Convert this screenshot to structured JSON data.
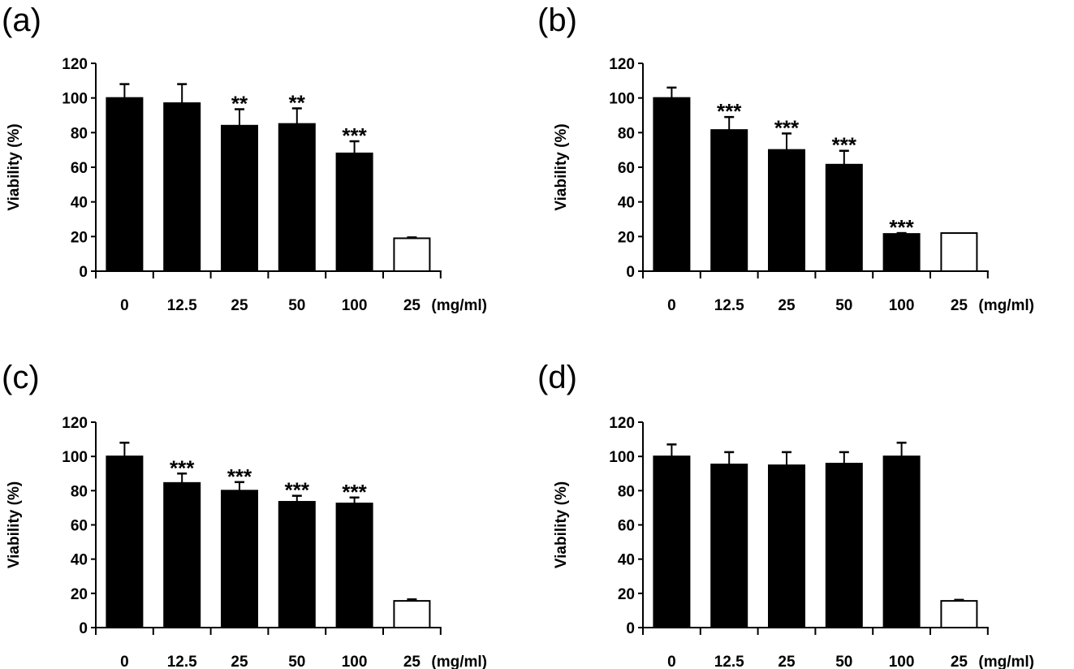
{
  "chart_data": [
    {
      "panel": "(a)",
      "type": "bar",
      "title": "",
      "xlabel": "",
      "ylabel": "Viability (%)",
      "ylim": [
        0,
        120
      ],
      "yticks": [
        0,
        20,
        40,
        60,
        80,
        100,
        120
      ],
      "categories": [
        "0",
        "12.5",
        "25",
        "50",
        "100",
        "25"
      ],
      "x_unit": "(mg/ml)",
      "values": [
        100,
        97,
        84,
        85,
        68,
        19
      ],
      "error_upper": [
        108,
        108,
        93.5,
        94,
        75,
        19.5
      ],
      "fill": [
        "black",
        "black",
        "black",
        "black",
        "black",
        "white"
      ],
      "significance": [
        "",
        "",
        "**",
        "**",
        "***",
        ""
      ],
      "grid": false
    },
    {
      "panel": "(b)",
      "type": "bar",
      "title": "",
      "xlabel": "",
      "ylabel": "Viability (%)",
      "ylim": [
        0,
        120
      ],
      "yticks": [
        0,
        20,
        40,
        60,
        80,
        100,
        120
      ],
      "categories": [
        "0",
        "12.5",
        "25",
        "50",
        "100",
        "25"
      ],
      "x_unit": "(mg/ml)",
      "values": [
        100,
        81.5,
        70,
        61.5,
        21.5,
        22
      ],
      "error_upper": [
        106,
        89,
        79.5,
        69.5,
        22,
        22
      ],
      "fill": [
        "black",
        "black",
        "black",
        "black",
        "black",
        "white"
      ],
      "significance": [
        "",
        "***",
        "***",
        "***",
        "***",
        ""
      ],
      "grid": false
    },
    {
      "panel": "(c)",
      "type": "bar",
      "title": "",
      "xlabel": "",
      "ylabel": "Viability (%)",
      "ylim": [
        0,
        120
      ],
      "yticks": [
        0,
        20,
        40,
        60,
        80,
        100,
        120
      ],
      "categories": [
        "0",
        "12.5",
        "25",
        "50",
        "100",
        "25"
      ],
      "x_unit": "(mg/ml)",
      "values": [
        100,
        84.5,
        80,
        73.5,
        72.5,
        15.6
      ],
      "error_upper": [
        108,
        90,
        85,
        77,
        76,
        16.5
      ],
      "fill": [
        "black",
        "black",
        "black",
        "black",
        "black",
        "white"
      ],
      "significance": [
        "",
        "***",
        "***",
        "***",
        "***",
        ""
      ],
      "grid": false
    },
    {
      "panel": "(d)",
      "type": "bar",
      "title": "",
      "xlabel": "",
      "ylabel": "Viability (%)",
      "ylim": [
        0,
        120
      ],
      "yticks": [
        0,
        20,
        40,
        60,
        80,
        100,
        120
      ],
      "categories": [
        "0",
        "12.5",
        "25",
        "50",
        "100",
        "25"
      ],
      "x_unit": "(mg/ml)",
      "values": [
        100,
        95.3,
        94.8,
        95.8,
        100,
        15.6
      ],
      "error_upper": [
        107,
        102.5,
        102.5,
        102.5,
        108,
        16.2
      ],
      "fill": [
        "black",
        "black",
        "black",
        "black",
        "black",
        "white"
      ],
      "significance": [
        "",
        "",
        "",
        "",
        "",
        ""
      ],
      "grid": false
    }
  ]
}
